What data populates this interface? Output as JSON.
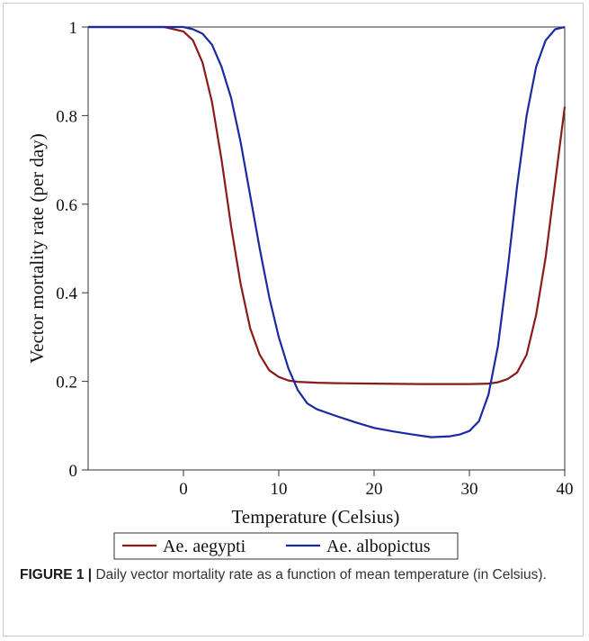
{
  "caption": {
    "label": "FIGURE 1 |",
    "text": " Daily vector mortality rate as a function of mean temperature (in Celsius)."
  },
  "chart_data": {
    "type": "line",
    "title": "",
    "xlabel": "Temperature (Celsius)",
    "ylabel": "Vector mortality rate (per day)",
    "xlim": [
      -10,
      40
    ],
    "ylim": [
      0,
      1
    ],
    "xticks": [
      0,
      10,
      20,
      30,
      40
    ],
    "yticks": [
      0,
      0.2,
      0.4,
      0.6,
      0.8,
      1
    ],
    "ytick_labels": [
      "0",
      "0.2",
      "0.4",
      "0.6",
      "0.8",
      "1"
    ],
    "grid": false,
    "legend": "bottom",
    "series": [
      {
        "name": "Ae. aegypti",
        "color": "#8b1a1a",
        "x": [
          -10,
          -2,
          0,
          1,
          2,
          3,
          4,
          5,
          6,
          7,
          8,
          9,
          10,
          11,
          12,
          14,
          16,
          20,
          25,
          30,
          32,
          33,
          34,
          35,
          36,
          37,
          38,
          39,
          40
        ],
        "y": [
          1.0,
          1.0,
          0.99,
          0.97,
          0.92,
          0.83,
          0.7,
          0.55,
          0.42,
          0.32,
          0.26,
          0.225,
          0.21,
          0.202,
          0.199,
          0.197,
          0.196,
          0.195,
          0.194,
          0.194,
          0.195,
          0.198,
          0.205,
          0.22,
          0.26,
          0.35,
          0.48,
          0.65,
          0.82
        ]
      },
      {
        "name": "Ae. albopictus",
        "color": "#1a2aa0",
        "x": [
          -10,
          0,
          1,
          2,
          3,
          4,
          5,
          6,
          7,
          8,
          9,
          10,
          11,
          12,
          13,
          14,
          16,
          18,
          20,
          22,
          24,
          26,
          28,
          29,
          30,
          31,
          32,
          33,
          34,
          35,
          36,
          37,
          38,
          39,
          40
        ],
        "y": [
          1.0,
          1.0,
          0.995,
          0.985,
          0.96,
          0.91,
          0.84,
          0.74,
          0.62,
          0.5,
          0.39,
          0.3,
          0.23,
          0.18,
          0.15,
          0.137,
          0.122,
          0.108,
          0.095,
          0.087,
          0.08,
          0.074,
          0.076,
          0.08,
          0.088,
          0.11,
          0.17,
          0.28,
          0.45,
          0.64,
          0.8,
          0.91,
          0.97,
          0.995,
          1.0
        ]
      }
    ]
  }
}
